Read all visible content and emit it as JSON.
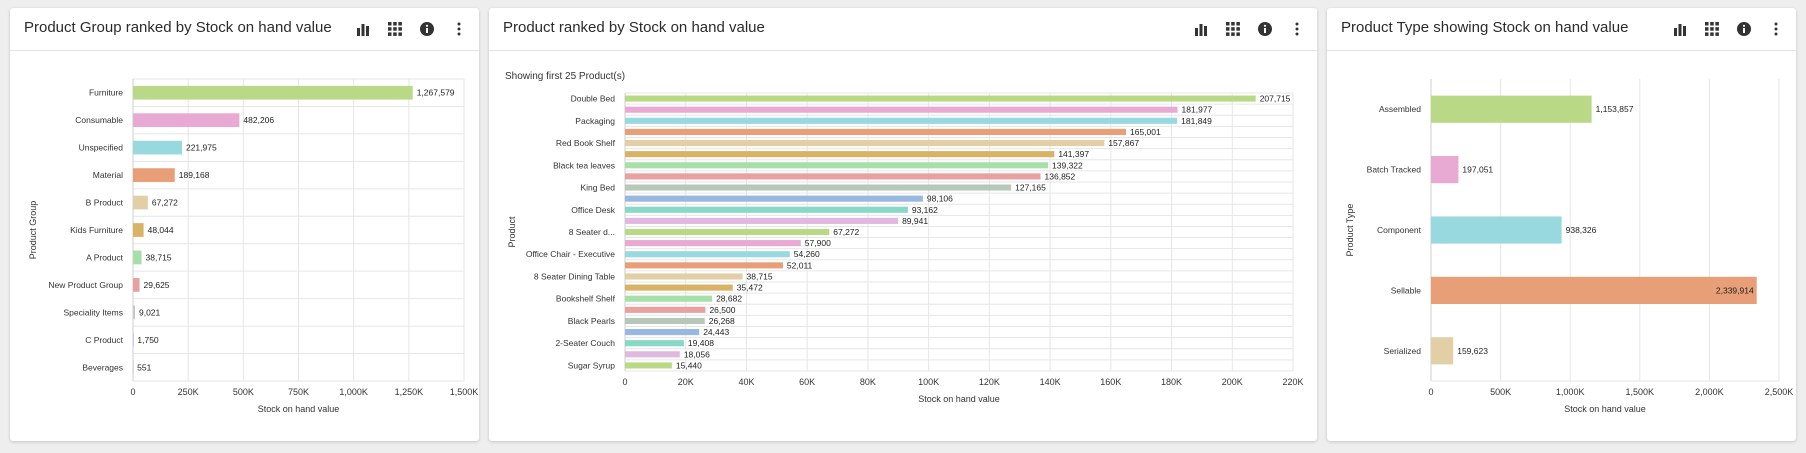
{
  "panels": [
    {
      "title": "Product Group ranked by Stock on hand value",
      "subtitle": ""
    },
    {
      "title": "Product ranked by Stock on hand value",
      "subtitle": "Showing first 25 Product(s)"
    },
    {
      "title": "Product Type showing Stock on hand value",
      "subtitle": ""
    }
  ],
  "header_icons": [
    "bar-chart-icon",
    "grid-icon",
    "info-icon",
    "more-vertical-icon"
  ],
  "chart_data": [
    {
      "type": "bar",
      "orientation": "horizontal",
      "title": "Product Group ranked by Stock on hand value",
      "xlabel": "Stock on hand value",
      "ylabel": "Product Group",
      "xlim": [
        0,
        1500000
      ],
      "xticks": [
        0,
        250000,
        500000,
        750000,
        1000000,
        1250000,
        1500000
      ],
      "xtick_labels": [
        "0",
        "250K",
        "500K",
        "750K",
        "1,000K",
        "1,250K",
        "1,500K"
      ],
      "grid": true,
      "categories": [
        "Furniture",
        "Consumable",
        "Unspecified",
        "Material",
        "B Product",
        "Kids Furniture",
        "A Product",
        "New Product Group",
        "Speciality Items",
        "C Product",
        "Beverages"
      ],
      "values": [
        1267579,
        482206,
        221975,
        189168,
        67272,
        48044,
        38715,
        29625,
        9021,
        1750,
        551
      ],
      "value_labels": [
        "1,267,579",
        "482,206",
        "221,975",
        "189,168",
        "67,272",
        "48,044",
        "38,715",
        "29,625",
        "9,021",
        "1,750",
        "551"
      ],
      "colors": [
        "#b9d987",
        "#e8a9d2",
        "#98d9e0",
        "#e89e76",
        "#e2cfa6",
        "#d9b365",
        "#a6e0a8",
        "#e8a0a0",
        "#c8c8c8",
        "#a8c8e8",
        "#d8c8e8"
      ]
    },
    {
      "type": "bar",
      "orientation": "horizontal",
      "title": "Product ranked by Stock on hand value",
      "xlabel": "Stock on hand value",
      "ylabel": "Product",
      "xlim": [
        0,
        220000
      ],
      "xticks": [
        0,
        20000,
        40000,
        60000,
        80000,
        100000,
        120000,
        140000,
        160000,
        180000,
        200000,
        220000
      ],
      "xtick_labels": [
        "0",
        "20K",
        "40K",
        "60K",
        "80K",
        "100K",
        "120K",
        "140K",
        "160K",
        "180K",
        "200K",
        "220K"
      ],
      "grid": true,
      "categories": [
        "Double Bed",
        "",
        "Packaging",
        "",
        "Red Book Shelf",
        "",
        "Black tea leaves",
        "",
        "King Bed",
        "",
        "Office Desk",
        "",
        "8 Seater d...",
        "",
        "Office Chair - Executive",
        "",
        "8 Seater Dining Table",
        "",
        "Bookshelf Shelf",
        "",
        "Black Pearls",
        "",
        "2-Seater Couch",
        "",
        "Sugar Syrup"
      ],
      "values": [
        207715,
        181977,
        181849,
        165001,
        157867,
        141397,
        139322,
        136852,
        127165,
        98106,
        93162,
        89941,
        67272,
        57900,
        54260,
        52011,
        38715,
        35472,
        28682,
        26500,
        26268,
        24443,
        19408,
        18056,
        15440
      ],
      "value_labels": [
        "207,715",
        "181,977",
        "181,849",
        "165,001",
        "157,867",
        "141,397",
        "139,322",
        "136,852",
        "127,165",
        "98,106",
        "93,162",
        "89,941",
        "67,272",
        "57,900",
        "54,260",
        "52,011",
        "38,715",
        "35,472",
        "28,682",
        "26,500",
        "26,268",
        "24,443",
        "19,408",
        "18,056",
        "15,440"
      ],
      "colors": [
        "#b9d987",
        "#e8a9d2",
        "#98d9e0",
        "#e89e76",
        "#e2cfa6",
        "#d9b365",
        "#a6e0a8",
        "#e8a0a0",
        "#b8c8b8",
        "#98b8e0",
        "#88d8c8",
        "#e0b8e0",
        "#b9d987",
        "#e8a9d2",
        "#98d9e0",
        "#e89e76",
        "#e2cfa6",
        "#d9b365",
        "#a6e0a8",
        "#e8a0a0",
        "#b8c8b8",
        "#98b8e0",
        "#88d8c8",
        "#e0b8e0",
        "#b9d987"
      ]
    },
    {
      "type": "bar",
      "orientation": "horizontal",
      "title": "Product Type showing Stock on hand value",
      "xlabel": "Stock on hand value",
      "ylabel": "Product Type",
      "xlim": [
        0,
        2500000
      ],
      "xticks": [
        0,
        500000,
        1000000,
        1500000,
        2000000,
        2500000
      ],
      "xtick_labels": [
        "0",
        "500K",
        "1,000K",
        "1,500K",
        "2,000K",
        "2,500K"
      ],
      "grid": true,
      "categories": [
        "Assembled",
        "Batch Tracked",
        "Component",
        "Sellable",
        "Serialized"
      ],
      "values": [
        1153857,
        197051,
        938326,
        2339914,
        159623
      ],
      "value_labels": [
        "1,153,857",
        "197,051",
        "938,326",
        "2,339,914",
        "159,623"
      ],
      "colors": [
        "#b9d987",
        "#e8a9d2",
        "#98d9e0",
        "#e89e76",
        "#e2cfa6"
      ]
    }
  ]
}
